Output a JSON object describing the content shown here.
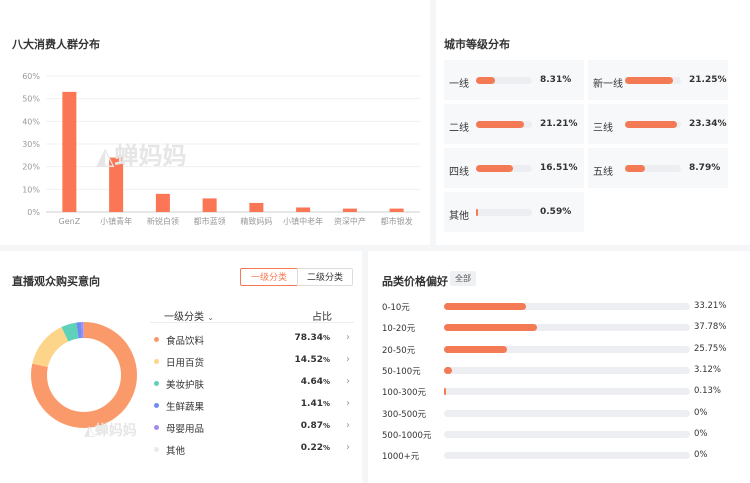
{
  "colors": {
    "accent": "#f47a55",
    "bar": "#fa7654",
    "track": "#eceef2",
    "donut": [
      "#fa9a6b",
      "#fdd58a",
      "#5ed2b8",
      "#6f8cf0",
      "#a58be8",
      "#e8eaf0"
    ]
  },
  "watermark": "蝉妈妈",
  "consumer": {
    "title": "八大消费人群分布",
    "chart_data": {
      "type": "bar",
      "categories": [
        "GenZ",
        "小镇青年",
        "新锐白领",
        "都市蓝领",
        "精致妈妈",
        "小镇中老年",
        "资深中产",
        "都市银发"
      ],
      "values": [
        53,
        24,
        8,
        6,
        4,
        2,
        1.5,
        1.5
      ],
      "ylim": [
        0,
        60
      ],
      "yticks": [
        "0%",
        "10%",
        "20%",
        "30%",
        "40%",
        "50%",
        "60%"
      ],
      "ytick_values": [
        0,
        10,
        20,
        30,
        40,
        50,
        60
      ],
      "grid": true
    }
  },
  "city": {
    "title": "城市等级分布",
    "rows": [
      {
        "label": "一线",
        "value": "8.31%",
        "pct": 8.31
      },
      {
        "label": "新一线",
        "value": "21.25%",
        "pct": 21.25
      },
      {
        "label": "二线",
        "value": "21.21%",
        "pct": 21.21
      },
      {
        "label": "三线",
        "value": "23.34%",
        "pct": 23.34
      },
      {
        "label": "四线",
        "value": "16.51%",
        "pct": 16.51
      },
      {
        "label": "五线",
        "value": "8.79%",
        "pct": 8.79
      },
      {
        "label": "其他",
        "value": "0.59%",
        "pct": 0.59
      }
    ]
  },
  "intent": {
    "title": "直播观众购买意向",
    "tabs": [
      "一级分类",
      "二级分类"
    ],
    "table_header": {
      "category": "一级分类",
      "ratio": "占比"
    },
    "chevron": "›",
    "rows": [
      {
        "name": "食品饮料",
        "value": "78.34",
        "pct": 78.34
      },
      {
        "name": "日用百货",
        "value": "14.52",
        "pct": 14.52
      },
      {
        "name": "美妆护肤",
        "value": "4.64",
        "pct": 4.64
      },
      {
        "name": "生鲜蔬果",
        "value": "1.41",
        "pct": 1.41
      },
      {
        "name": "母婴用品",
        "value": "0.87",
        "pct": 0.87
      },
      {
        "name": "其他",
        "value": "0.22",
        "pct": 0.22
      }
    ],
    "unit": "%"
  },
  "price": {
    "title": "品类价格偏好",
    "badge": "全部",
    "rows": [
      {
        "label": "0-10元",
        "value": "33.21%",
        "pct": 33.21
      },
      {
        "label": "10-20元",
        "value": "37.78%",
        "pct": 37.78
      },
      {
        "label": "20-50元",
        "value": "25.75%",
        "pct": 25.75
      },
      {
        "label": "50-100元",
        "value": "3.12%",
        "pct": 3.12
      },
      {
        "label": "100-300元",
        "value": "0.13%",
        "pct": 0.13
      },
      {
        "label": "300-500元",
        "value": "0%",
        "pct": 0
      },
      {
        "label": "500-1000元",
        "value": "0%",
        "pct": 0
      },
      {
        "label": "1000+元",
        "value": "0%",
        "pct": 0
      }
    ]
  }
}
